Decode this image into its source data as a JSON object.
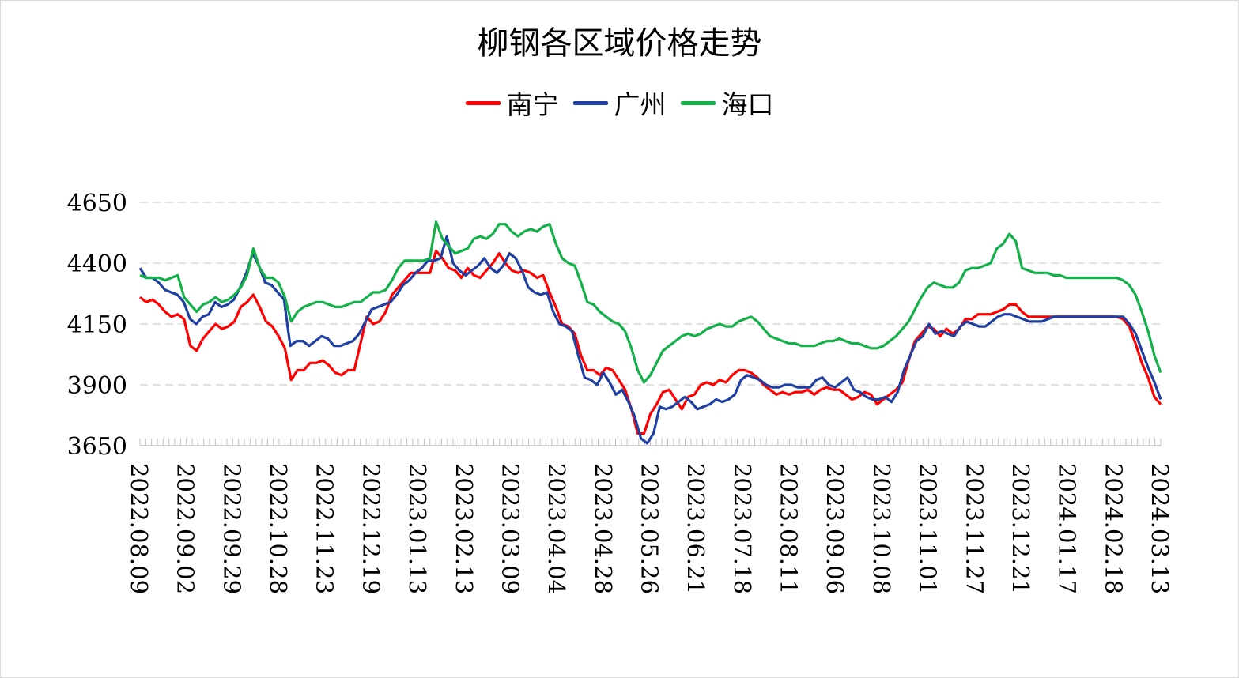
{
  "chart_data": {
    "type": "line",
    "title": "柳钢各区域价格走势",
    "xlabel": "",
    "ylabel": "",
    "ylim": [
      3650,
      4650
    ],
    "yticks": [
      3650,
      3900,
      4150,
      4400,
      4650
    ],
    "grid": true,
    "legend_position": "top",
    "x_tick_labels": [
      "2022.08.09",
      "2022.09.02",
      "2022.09.29",
      "2022.10.28",
      "2022.11.23",
      "2022.12.19",
      "2023.01.13",
      "2023.02.13",
      "2023.03.09",
      "2023.04.04",
      "2023.04.28",
      "2023.05.26",
      "2023.06.21",
      "2023.07.18",
      "2023.08.11",
      "2023.09.06",
      "2023.10.08",
      "2023.11.01",
      "2023.11.27",
      "2023.12.21",
      "2024.01.17",
      "2024.02.18",
      "2024.03.13"
    ],
    "series": [
      {
        "name": "南宁",
        "color": "#ff0000",
        "values": [
          4260,
          4240,
          4250,
          4230,
          4200,
          4180,
          4190,
          4170,
          4060,
          4040,
          4090,
          4120,
          4150,
          4130,
          4140,
          4160,
          4220,
          4240,
          4270,
          4220,
          4160,
          4140,
          4100,
          4050,
          3920,
          3960,
          3960,
          3990,
          3990,
          4000,
          3980,
          3950,
          3940,
          3960,
          3960,
          4070,
          4180,
          4150,
          4160,
          4200,
          4270,
          4300,
          4330,
          4360,
          4360,
          4360,
          4360,
          4450,
          4420,
          4380,
          4370,
          4340,
          4380,
          4350,
          4340,
          4370,
          4400,
          4440,
          4400,
          4370,
          4360,
          4370,
          4360,
          4340,
          4350,
          4280,
          4220,
          4150,
          4140,
          4110,
          4020,
          3960,
          3960,
          3940,
          3970,
          3960,
          3920,
          3880,
          3800,
          3700,
          3700,
          3780,
          3820,
          3870,
          3880,
          3840,
          3800,
          3850,
          3860,
          3900,
          3910,
          3900,
          3920,
          3910,
          3940,
          3960,
          3960,
          3950,
          3930,
          3900,
          3880,
          3860,
          3870,
          3860,
          3870,
          3870,
          3880,
          3860,
          3880,
          3890,
          3880,
          3880,
          3860,
          3840,
          3850,
          3870,
          3860,
          3820,
          3840,
          3860,
          3880,
          3910,
          4000,
          4080,
          4110,
          4140,
          4130,
          4100,
          4130,
          4110,
          4130,
          4170,
          4170,
          4190,
          4190,
          4190,
          4200,
          4210,
          4230,
          4230,
          4200,
          4180,
          4180,
          4180,
          4180,
          4180,
          4180,
          4180,
          4180,
          4180,
          4180,
          4180,
          4180,
          4180,
          4180,
          4180,
          4170,
          4140,
          4070,
          3990,
          3930,
          3850,
          3820
        ]
      },
      {
        "name": "广州",
        "color": "#1f3fa3",
        "values": [
          4380,
          4340,
          4340,
          4320,
          4290,
          4280,
          4270,
          4240,
          4170,
          4150,
          4180,
          4190,
          4240,
          4220,
          4230,
          4250,
          4300,
          4360,
          4440,
          4390,
          4320,
          4310,
          4280,
          4250,
          4060,
          4080,
          4080,
          4060,
          4080,
          4100,
          4090,
          4060,
          4060,
          4070,
          4080,
          4110,
          4160,
          4210,
          4220,
          4230,
          4240,
          4270,
          4310,
          4330,
          4360,
          4380,
          4410,
          4410,
          4420,
          4510,
          4400,
          4370,
          4350,
          4370,
          4390,
          4420,
          4380,
          4360,
          4390,
          4440,
          4420,
          4370,
          4300,
          4280,
          4270,
          4280,
          4200,
          4150,
          4140,
          4120,
          4020,
          3930,
          3920,
          3900,
          3950,
          3910,
          3860,
          3880,
          3830,
          3770,
          3680,
          3660,
          3700,
          3810,
          3800,
          3810,
          3830,
          3850,
          3830,
          3800,
          3810,
          3820,
          3840,
          3830,
          3840,
          3860,
          3920,
          3940,
          3930,
          3920,
          3900,
          3890,
          3890,
          3900,
          3900,
          3890,
          3890,
          3890,
          3920,
          3930,
          3900,
          3890,
          3910,
          3930,
          3880,
          3870,
          3850,
          3840,
          3840,
          3850,
          3830,
          3870,
          3960,
          4020,
          4080,
          4100,
          4150,
          4110,
          4120,
          4110,
          4100,
          4140,
          4160,
          4150,
          4140,
          4140,
          4160,
          4180,
          4190,
          4190,
          4180,
          4170,
          4160,
          4160,
          4160,
          4170,
          4180,
          4180,
          4180,
          4180,
          4180,
          4180,
          4180,
          4180,
          4180,
          4180,
          4180,
          4180,
          4150,
          4110,
          4040,
          3970,
          3910,
          3840
        ]
      },
      {
        "name": "海口",
        "color": "#14b04a",
        "values": [
          4350,
          4340,
          4340,
          4340,
          4330,
          4340,
          4350,
          4260,
          4230,
          4200,
          4230,
          4240,
          4260,
          4240,
          4250,
          4270,
          4300,
          4350,
          4460,
          4380,
          4340,
          4340,
          4320,
          4260,
          4160,
          4200,
          4220,
          4230,
          4240,
          4240,
          4230,
          4220,
          4220,
          4230,
          4240,
          4240,
          4260,
          4280,
          4280,
          4290,
          4330,
          4380,
          4410,
          4410,
          4410,
          4410,
          4420,
          4570,
          4500,
          4470,
          4440,
          4450,
          4460,
          4500,
          4510,
          4500,
          4520,
          4560,
          4560,
          4530,
          4510,
          4530,
          4540,
          4530,
          4550,
          4560,
          4480,
          4420,
          4400,
          4390,
          4320,
          4240,
          4230,
          4200,
          4180,
          4160,
          4150,
          4120,
          4050,
          3960,
          3910,
          3940,
          3990,
          4040,
          4060,
          4080,
          4100,
          4110,
          4100,
          4110,
          4130,
          4140,
          4150,
          4140,
          4140,
          4160,
          4170,
          4180,
          4160,
          4130,
          4100,
          4090,
          4080,
          4070,
          4070,
          4060,
          4060,
          4060,
          4070,
          4080,
          4080,
          4090,
          4080,
          4070,
          4070,
          4060,
          4050,
          4050,
          4060,
          4080,
          4100,
          4130,
          4160,
          4210,
          4260,
          4300,
          4320,
          4310,
          4300,
          4300,
          4320,
          4370,
          4380,
          4380,
          4390,
          4400,
          4460,
          4480,
          4520,
          4490,
          4380,
          4370,
          4360,
          4360,
          4360,
          4350,
          4350,
          4340,
          4340,
          4340,
          4340,
          4340,
          4340,
          4340,
          4340,
          4340,
          4330,
          4310,
          4270,
          4200,
          4120,
          4020,
          3950
        ]
      }
    ]
  }
}
